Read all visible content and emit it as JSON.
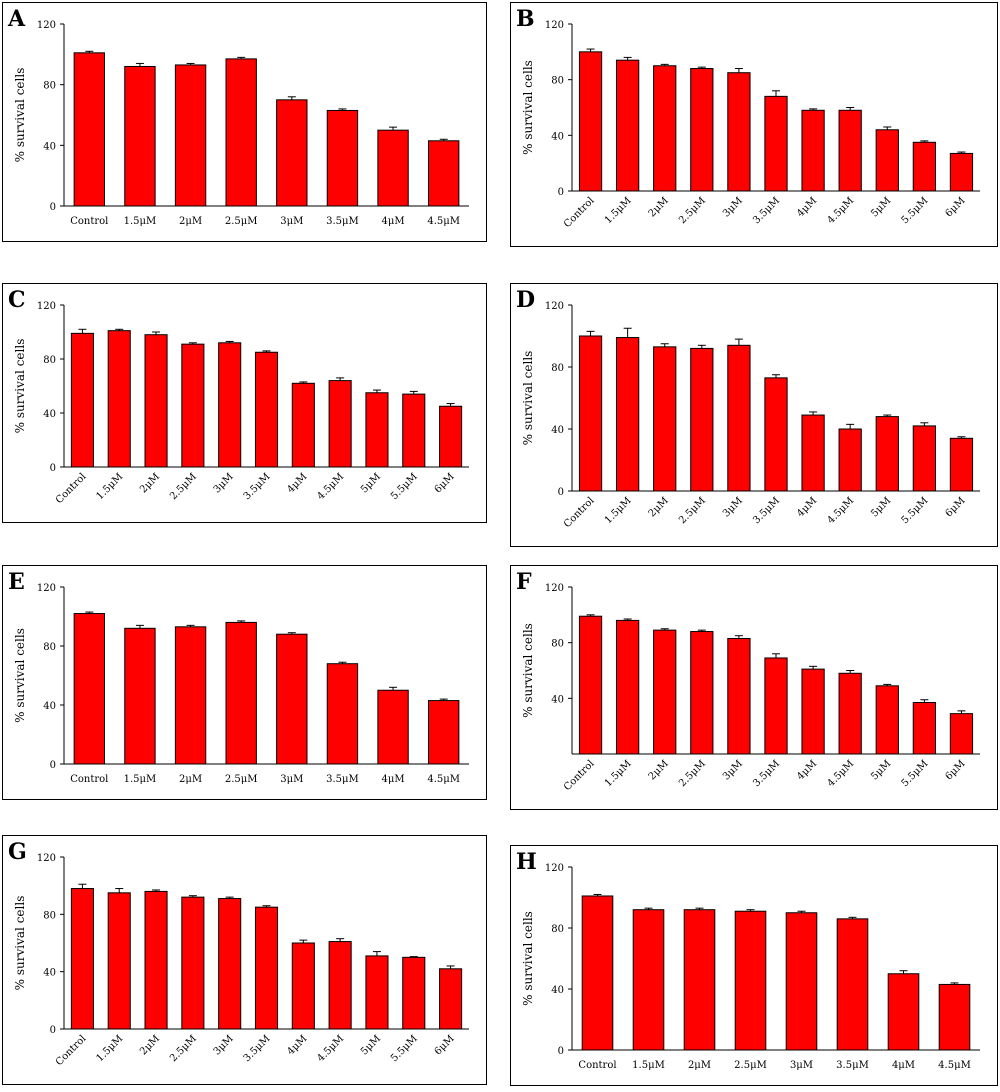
{
  "chart_data": [
    {
      "type": "bar",
      "title": "A",
      "y_label": "% survival cells",
      "color": "#ff0000",
      "categories": [
        "Control",
        "1.5μM",
        "2μM",
        "2.5μM",
        "3μM",
        "3.5μM",
        "4μM",
        "4.5μM"
      ],
      "values": [
        101,
        92,
        93,
        97,
        70,
        63,
        50,
        43
      ],
      "errors": [
        1,
        2,
        1,
        1,
        2,
        1,
        2,
        1
      ],
      "ylim": [
        0,
        120
      ],
      "yticks": [
        0,
        40,
        80,
        120
      ]
    },
    {
      "type": "bar",
      "title": "B",
      "y_label": "% survival cells",
      "color": "#ff0000",
      "categories": [
        "Control",
        "1.5μM",
        "2μM",
        "2.5μM",
        "3μM",
        "3.5μM",
        "4μM",
        "4.5μM",
        "5μM",
        "5.5μM",
        "6μM"
      ],
      "values": [
        100,
        94,
        90,
        88,
        85,
        68,
        58,
        58,
        44,
        35,
        27
      ],
      "errors": [
        2,
        2,
        1,
        1,
        3,
        4,
        1,
        2,
        2,
        1,
        1
      ],
      "ylim": [
        0,
        120
      ],
      "yticks": [
        0,
        40,
        80,
        120
      ]
    },
    {
      "type": "bar",
      "title": "C",
      "y_label": "% survival cells",
      "color": "#ff0000",
      "categories": [
        "Control",
        "1.5μM",
        "2μM",
        "2.5μM",
        "3μM",
        "3.5μM",
        "4μM",
        "4.5μM",
        "5μM",
        "5.5μM",
        "6μM"
      ],
      "values": [
        99,
        101,
        98,
        91,
        92,
        85,
        62,
        64,
        55,
        54,
        45
      ],
      "errors": [
        3,
        1,
        2,
        1,
        1,
        1,
        1,
        2,
        2,
        2,
        2
      ],
      "ylim": [
        0,
        120
      ],
      "yticks": [
        0,
        40,
        80,
        120
      ]
    },
    {
      "type": "bar",
      "title": "D",
      "y_label": "% survival cells",
      "color": "#ff0000",
      "categories": [
        "Control",
        "1.5μM",
        "2μM",
        "2.5μM",
        "3μM",
        "3.5μM",
        "4μM",
        "4.5μM",
        "5μM",
        "5.5μM",
        "6μM"
      ],
      "values": [
        100,
        99,
        93,
        92,
        94,
        73,
        49,
        40,
        48,
        42,
        34
      ],
      "errors": [
        3,
        6,
        2,
        2,
        4,
        2,
        2,
        3,
        1,
        2,
        1
      ],
      "ylim": [
        0,
        120
      ],
      "yticks": [
        0,
        40,
        80,
        120
      ]
    },
    {
      "type": "bar",
      "title": "E",
      "y_label": "% survival cells",
      "color": "#ff0000",
      "categories": [
        "Control",
        "1.5μM",
        "2μM",
        "2.5μM",
        "3μM",
        "3.5μM",
        "4μM",
        "4.5μM"
      ],
      "values": [
        102,
        92,
        93,
        96,
        88,
        68,
        50,
        43
      ],
      "errors": [
        1,
        2,
        1,
        1,
        1,
        1,
        2,
        1
      ],
      "ylim": [
        0,
        120
      ],
      "yticks": [
        0,
        40,
        80,
        120
      ]
    },
    {
      "type": "bar",
      "title": "F",
      "y_label": "% survival cells",
      "color": "#ff0000",
      "categories": [
        "Control",
        "1.5μM",
        "2μM",
        "2.5μM",
        "3μM",
        "3.5μM",
        "4μM",
        "4.5μM",
        "5μM",
        "5.5μM",
        "6μM"
      ],
      "values": [
        99,
        96,
        89,
        88,
        83,
        69,
        61,
        58,
        49,
        37,
        29
      ],
      "errors": [
        1,
        1,
        1,
        1,
        2,
        3,
        2,
        2,
        1,
        2,
        2
      ],
      "ylim": [
        0,
        120
      ],
      "yticks": [
        40,
        80,
        120
      ]
    },
    {
      "type": "bar",
      "title": "G",
      "y_label": "% survival cells",
      "color": "#ff0000",
      "categories": [
        "Control",
        "1.5μM",
        "2μM",
        "2.5μM",
        "3μM",
        "3.5μM",
        "4μM",
        "4.5μM",
        "5μM",
        "5.5μM",
        "6μM"
      ],
      "values": [
        98,
        95,
        96,
        92,
        91,
        85,
        60,
        61,
        51,
        50,
        42
      ],
      "errors": [
        3,
        3,
        1,
        1,
        1,
        1,
        2,
        2,
        3,
        0.5,
        2
      ],
      "ylim": [
        0,
        120
      ],
      "yticks": [
        0,
        40,
        80,
        120
      ]
    },
    {
      "type": "bar",
      "title": "H",
      "y_label": "% survival cells",
      "color": "#ff0000",
      "categories": [
        "Control",
        "1.5μM",
        "2μM",
        "2.5μM",
        "3μM",
        "3.5μM",
        "4μM",
        "4.5μM"
      ],
      "values": [
        101,
        92,
        92,
        91,
        90,
        86,
        50,
        43
      ],
      "errors": [
        1,
        1,
        1,
        1,
        1,
        1,
        2,
        1
      ],
      "ylim": [
        0,
        120
      ],
      "yticks": [
        0,
        40,
        80,
        120
      ]
    }
  ]
}
